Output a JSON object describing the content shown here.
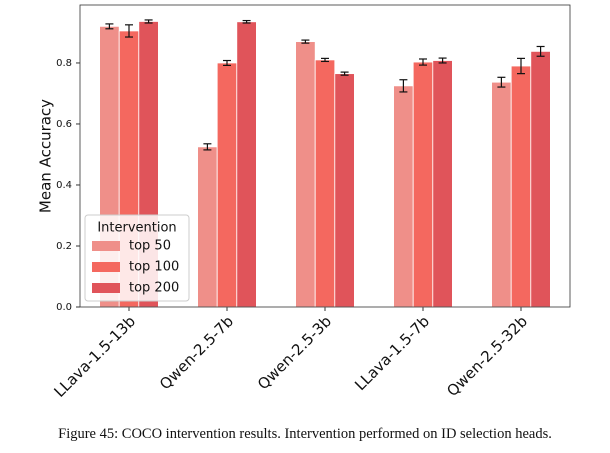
{
  "chart_data": {
    "type": "bar",
    "ylabel": "Mean Accuracy",
    "categories": [
      "LLava-1.5-13b",
      "Qwen-2.5-7b",
      "Qwen-2.5-3b",
      "LLava-1.5-7b",
      "Qwen-2.5-32b"
    ],
    "series": [
      {
        "name": "top 50",
        "color": "#ef8f89",
        "values": [
          0.92,
          0.525,
          0.87,
          0.725,
          0.737
        ],
        "errors": [
          0.008,
          0.01,
          0.005,
          0.02,
          0.016
        ]
      },
      {
        "name": "top 100",
        "color": "#f4685f",
        "values": [
          0.905,
          0.8,
          0.81,
          0.803,
          0.79
        ],
        "errors": [
          0.02,
          0.008,
          0.005,
          0.01,
          0.025
        ]
      },
      {
        "name": "top 200",
        "color": "#e0545a",
        "values": [
          0.936,
          0.935,
          0.765,
          0.808,
          0.838
        ],
        "errors": [
          0.005,
          0.004,
          0.005,
          0.008,
          0.016
        ]
      }
    ],
    "ylim": [
      0,
      0.99
    ],
    "yticks": [
      {
        "value": 0,
        "label": "0.0"
      },
      0.2,
      0.4,
      0.6,
      0.8
    ],
    "legend_title": "Intervention",
    "legend": "lower left"
  },
  "caption": "Figure 45: COCO intervention results. Intervention performed on ID selection heads."
}
